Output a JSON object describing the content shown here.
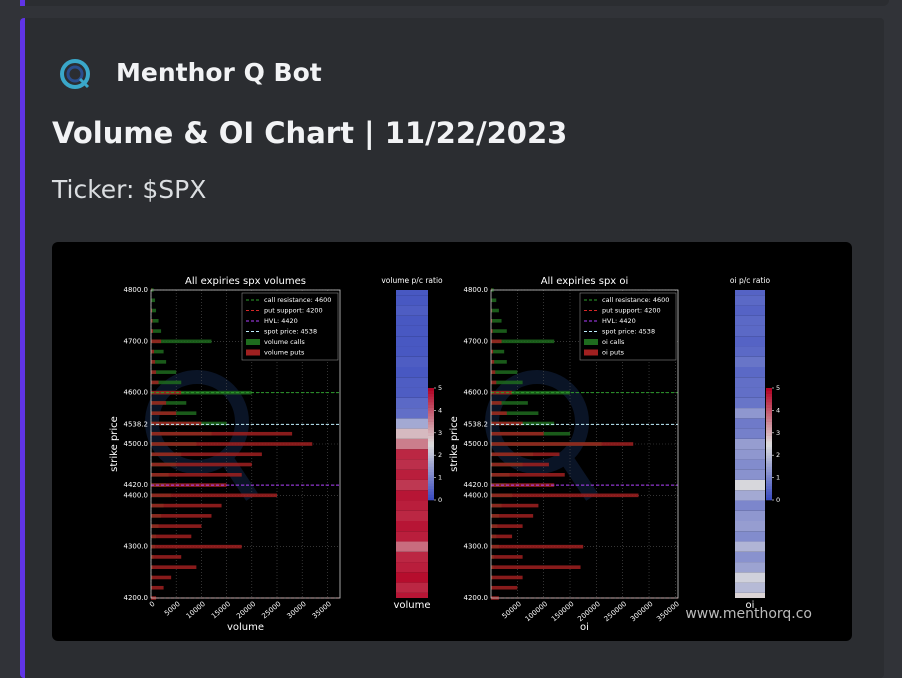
{
  "message": {
    "author": "Menthor Q Bot",
    "title": "Volume & OI Chart | 11/22/2023",
    "ticker": "Ticker: $SPX",
    "watermark": "www.menthorq.co"
  },
  "chart_data": [
    {
      "type": "hbar",
      "title": "All expiries  spx volumes",
      "xlabel": "volume",
      "ylabel": "strike price",
      "xlim": [
        0,
        37500
      ],
      "xticks": [
        0,
        5000,
        10000,
        15000,
        20000,
        25000,
        30000,
        35000
      ],
      "ylim": [
        4200,
        4800
      ],
      "yticks": [
        {
          "value": 4200,
          "label": "4200.0"
        },
        {
          "value": 4300,
          "label": "4300.0"
        },
        {
          "value": 4400,
          "label": "4400.0"
        },
        {
          "value": 4420,
          "label": "4420.0"
        },
        {
          "value": 4500,
          "label": "4500.0"
        },
        {
          "value": 4538.2,
          "label": "4538.2"
        },
        {
          "value": 4600,
          "label": "4600.0"
        },
        {
          "value": 4700,
          "label": "4700.0"
        },
        {
          "value": 4800,
          "label": "4800.0"
        }
      ],
      "grid": true,
      "lines": [
        {
          "label": "call resistance: 4600",
          "value": 4600,
          "color": "#2ca02c"
        },
        {
          "label": "put support: 4200",
          "value": 4200,
          "color": "#d62728"
        },
        {
          "label": "HVL: 4420",
          "value": 4420,
          "color": "#b040ff"
        },
        {
          "label": "spot price: 4538",
          "value": 4538.2,
          "color": "#bfefff"
        }
      ],
      "y": [
        4200,
        4220,
        4240,
        4260,
        4280,
        4300,
        4320,
        4340,
        4360,
        4380,
        4400,
        4420,
        4440,
        4460,
        4480,
        4500,
        4520,
        4540,
        4560,
        4580,
        4600,
        4620,
        4640,
        4660,
        4680,
        4700,
        4720,
        4740,
        4760,
        4780,
        4800
      ],
      "series": [
        {
          "name": "volume calls",
          "color": "#1e6b1e",
          "values": [
            0,
            200,
            300,
            400,
            500,
            800,
            1000,
            1500,
            2000,
            2500,
            4000,
            3000,
            3500,
            5000,
            6000,
            9000,
            12000,
            15000,
            9000,
            7000,
            20000,
            6000,
            5000,
            3000,
            2500,
            12000,
            2000,
            1500,
            1000,
            800,
            500
          ]
        },
        {
          "name": "volume puts",
          "color": "#a02020",
          "values": [
            1000,
            2500,
            4000,
            9000,
            6000,
            18000,
            8000,
            10000,
            12000,
            14000,
            25000,
            15000,
            18000,
            20000,
            22000,
            32000,
            28000,
            10000,
            5000,
            3000,
            6000,
            1500,
            1000,
            800,
            600,
            2000,
            400,
            300,
            200,
            100,
            100
          ]
        }
      ]
    },
    {
      "type": "heatmap",
      "title": "volume p/c ratio",
      "xlabel": "volume",
      "ylim": [
        4200,
        4800
      ],
      "clim": [
        0,
        5
      ],
      "cticks": [
        0,
        1,
        2,
        3,
        4,
        5
      ],
      "y": [
        4200,
        4220,
        4240,
        4260,
        4280,
        4300,
        4320,
        4340,
        4360,
        4380,
        4400,
        4420,
        4440,
        4460,
        4480,
        4500,
        4520,
        4540,
        4560,
        4580,
        4600,
        4620,
        4640,
        4660,
        4680,
        4700,
        4720,
        4740,
        4760,
        4780,
        4800
      ],
      "values": [
        4.8,
        4.6,
        4.9,
        4.7,
        4.6,
        3.8,
        4.7,
        4.8,
        4.6,
        4.7,
        4.8,
        4.4,
        4.7,
        4.5,
        4.6,
        3.6,
        2.9,
        1.6,
        0.6,
        0.5,
        0.3,
        0.3,
        0.2,
        0.3,
        0.2,
        0.2,
        0.2,
        0.2,
        0.3,
        0.2,
        0.2
      ]
    },
    {
      "type": "hbar",
      "title": "All expiries  spx oi",
      "xlabel": "oi",
      "ylabel": "strike price",
      "xlim": [
        0,
        355000
      ],
      "xticks": [
        50000,
        100000,
        150000,
        200000,
        250000,
        300000,
        350000
      ],
      "ylim": [
        4200,
        4800
      ],
      "yticks": [
        {
          "value": 4200,
          "label": "4200.0"
        },
        {
          "value": 4300,
          "label": "4300.0"
        },
        {
          "value": 4400,
          "label": "4400.0"
        },
        {
          "value": 4420,
          "label": "4420.0"
        },
        {
          "value": 4500,
          "label": "4500.0"
        },
        {
          "value": 4538.2,
          "label": "4538.2"
        },
        {
          "value": 4600,
          "label": "4600.0"
        },
        {
          "value": 4700,
          "label": "4700.0"
        },
        {
          "value": 4800,
          "label": "4800.0"
        }
      ],
      "grid": true,
      "lines": [
        {
          "label": "call resistance: 4600",
          "value": 4600,
          "color": "#2ca02c"
        },
        {
          "label": "put support: 4200",
          "value": 4200,
          "color": "#d62728"
        },
        {
          "label": "HVL: 4420",
          "value": 4420,
          "color": "#b040ff"
        },
        {
          "label": "spot price: 4538",
          "value": 4538.2,
          "color": "#bfefff"
        }
      ],
      "y": [
        4200,
        4220,
        4240,
        4260,
        4280,
        4300,
        4320,
        4340,
        4360,
        4380,
        4400,
        4420,
        4440,
        4460,
        4480,
        4500,
        4520,
        4540,
        4560,
        4580,
        4600,
        4620,
        4640,
        4660,
        4680,
        4700,
        4720,
        4740,
        4760,
        4780,
        4800
      ],
      "series": [
        {
          "name": "oi calls",
          "color": "#1e6b1e",
          "values": [
            500,
            2000,
            3000,
            5000,
            6000,
            15000,
            10000,
            12000,
            15000,
            20000,
            40000,
            30000,
            35000,
            60000,
            80000,
            210000,
            150000,
            120000,
            90000,
            70000,
            150000,
            60000,
            50000,
            30000,
            25000,
            120000,
            30000,
            20000,
            15000,
            10000,
            5000
          ]
        },
        {
          "name": "oi puts",
          "color": "#a02020",
          "values": [
            15000,
            50000,
            60000,
            170000,
            60000,
            175000,
            40000,
            60000,
            80000,
            90000,
            280000,
            120000,
            140000,
            110000,
            130000,
            270000,
            100000,
            60000,
            30000,
            20000,
            40000,
            10000,
            8000,
            6000,
            4000,
            20000,
            3000,
            2000,
            1500,
            1000,
            800
          ]
        }
      ]
    },
    {
      "type": "heatmap",
      "title": "oi p/c ratio",
      "xlabel": "oi",
      "ylim": [
        4200,
        4800
      ],
      "clim": [
        0,
        5
      ],
      "cticks": [
        0,
        1,
        2,
        3,
        4,
        5
      ],
      "y": [
        4200,
        4220,
        4240,
        4260,
        4280,
        4300,
        4320,
        4340,
        4360,
        4380,
        4400,
        4420,
        4440,
        4460,
        4480,
        4500,
        4520,
        4540,
        4560,
        4580,
        4600,
        4620,
        4640,
        4660,
        4680,
        4700,
        4720,
        4740,
        4760,
        4780,
        4800
      ],
      "values": [
        2.6,
        1.9,
        2.3,
        1.5,
        1.2,
        1.8,
        1.1,
        1.4,
        1.3,
        1.0,
        1.6,
        2.4,
        1.2,
        1.1,
        1.3,
        1.4,
        0.9,
        0.8,
        1.3,
        0.7,
        0.6,
        0.6,
        0.5,
        0.7,
        0.5,
        0.4,
        0.5,
        0.5,
        0.4,
        0.5,
        0.4
      ]
    }
  ]
}
